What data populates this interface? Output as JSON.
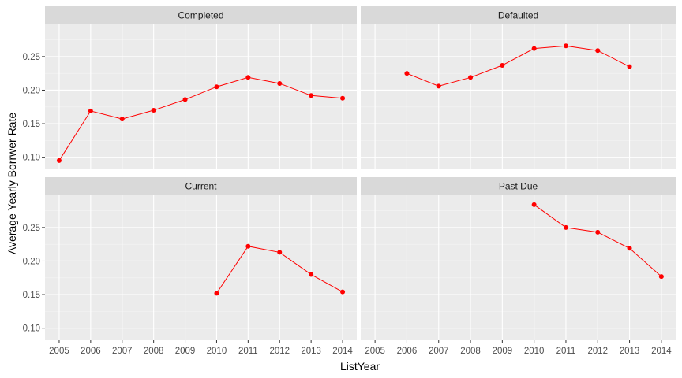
{
  "chart_data": {
    "type": "line",
    "layout": "facet-grid-2x2",
    "xlabel": "ListYear",
    "ylabel": "Average Yearly Borrwer Rate",
    "xticks": [
      2005,
      2006,
      2007,
      2008,
      2009,
      2010,
      2011,
      2012,
      2013,
      2014
    ],
    "yticks": [
      0.1,
      0.15,
      0.2,
      0.25
    ],
    "xlim": [
      2004.55,
      2014.45
    ],
    "ylim": [
      0.082,
      0.298
    ],
    "grid": true,
    "legend": "none",
    "colors": {
      "line": "#ff0000",
      "point": "#ff0000",
      "panel_bg": "#ebebeb",
      "strip_bg": "#d9d9d9",
      "grid_major": "#ffffff",
      "grid_minor": "#f5f5f5"
    },
    "panels": [
      {
        "label": "Completed",
        "x": [
          2005,
          2006,
          2007,
          2008,
          2009,
          2010,
          2011,
          2012,
          2013,
          2014
        ],
        "y": [
          0.095,
          0.169,
          0.157,
          0.17,
          0.186,
          0.205,
          0.219,
          0.21,
          0.192,
          0.188
        ]
      },
      {
        "label": "Defaulted",
        "x": [
          2006,
          2007,
          2008,
          2009,
          2010,
          2011,
          2012,
          2013
        ],
        "y": [
          0.225,
          0.206,
          0.219,
          0.237,
          0.262,
          0.266,
          0.259,
          0.235
        ]
      },
      {
        "label": "Current",
        "x": [
          2010,
          2011,
          2012,
          2013,
          2014
        ],
        "y": [
          0.152,
          0.222,
          0.213,
          0.18,
          0.154
        ]
      },
      {
        "label": "Past Due",
        "x": [
          2010,
          2011,
          2012,
          2013,
          2014
        ],
        "y": [
          0.284,
          0.25,
          0.243,
          0.219,
          0.177
        ]
      }
    ]
  }
}
